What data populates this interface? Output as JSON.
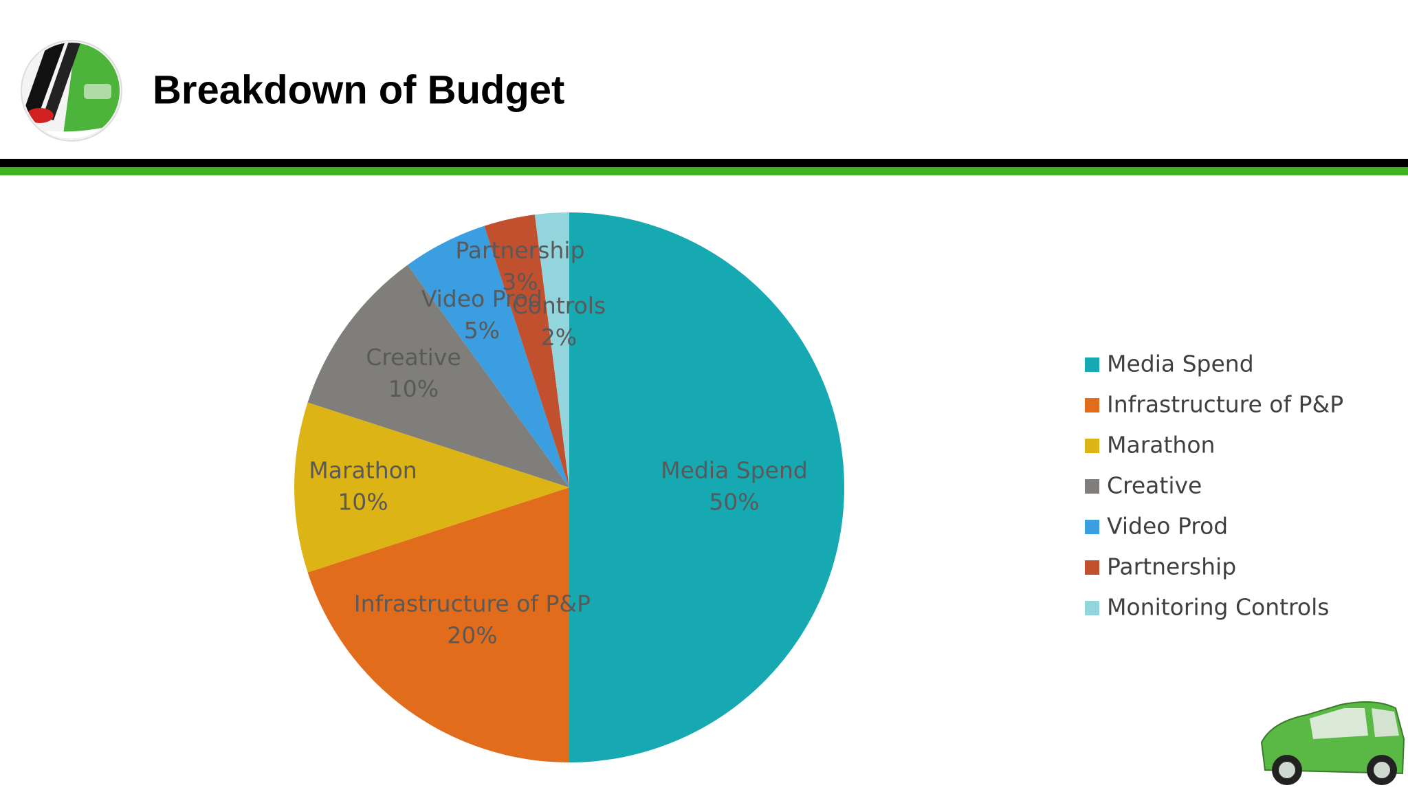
{
  "chart_data": {
    "type": "pie",
    "title": "Breakdown of Budget",
    "categories": [
      "Media Spend",
      "Infrastructure of P&P",
      "Marathon",
      "Creative",
      "Video Prod",
      "Partnership",
      "Monitoring Controls"
    ],
    "slice_names": [
      "Media Spend",
      "Infrastructure of P&P",
      "Marathon",
      "Creative",
      "Video Prod",
      "Partnership",
      "Controls"
    ],
    "values": [
      50,
      20,
      10,
      10,
      5,
      3,
      2
    ],
    "value_labels": [
      "50%",
      "20%",
      "10%",
      "10%",
      "5%",
      "3%",
      "2%"
    ],
    "colors": [
      "#17a9b1",
      "#e06c1c",
      "#ddb416",
      "#7f7e7a",
      "#3b9ee0",
      "#c0502e",
      "#92d5dc"
    ],
    "legend": "right"
  }
}
